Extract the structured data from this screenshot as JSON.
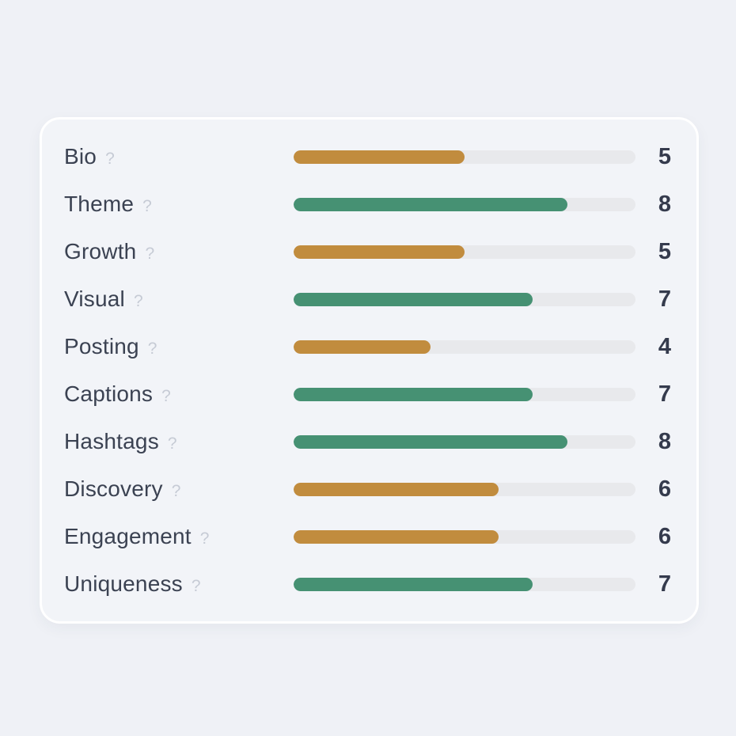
{
  "page": {
    "background": "#eff1f6"
  },
  "card": {
    "background": "#f2f4f8",
    "border_color": "#ffffff"
  },
  "help_icon_char": "?",
  "colors": {
    "bar_low": "#c18c3e",
    "bar_high": "#469173",
    "bar_track": "#e8e9ec",
    "label_text": "#3b4252",
    "score_text": "#353b4d",
    "help_icon": "#c6cbd5"
  },
  "chart_data": {
    "type": "bar",
    "orientation": "horizontal",
    "title": "",
    "categories": [
      "Bio",
      "Theme",
      "Growth",
      "Visual",
      "Posting",
      "Captions",
      "Hashtags",
      "Discovery",
      "Engagement",
      "Uniqueness"
    ],
    "values": [
      5,
      8,
      5,
      7,
      4,
      7,
      8,
      6,
      6,
      7
    ],
    "bar_colors": [
      "#c18c3e",
      "#469173",
      "#c18c3e",
      "#469173",
      "#c18c3e",
      "#469173",
      "#469173",
      "#c18c3e",
      "#c18c3e",
      "#469173"
    ],
    "xlim": [
      0,
      10
    ],
    "value_labels_shown": true,
    "grid": false,
    "legend": false
  }
}
